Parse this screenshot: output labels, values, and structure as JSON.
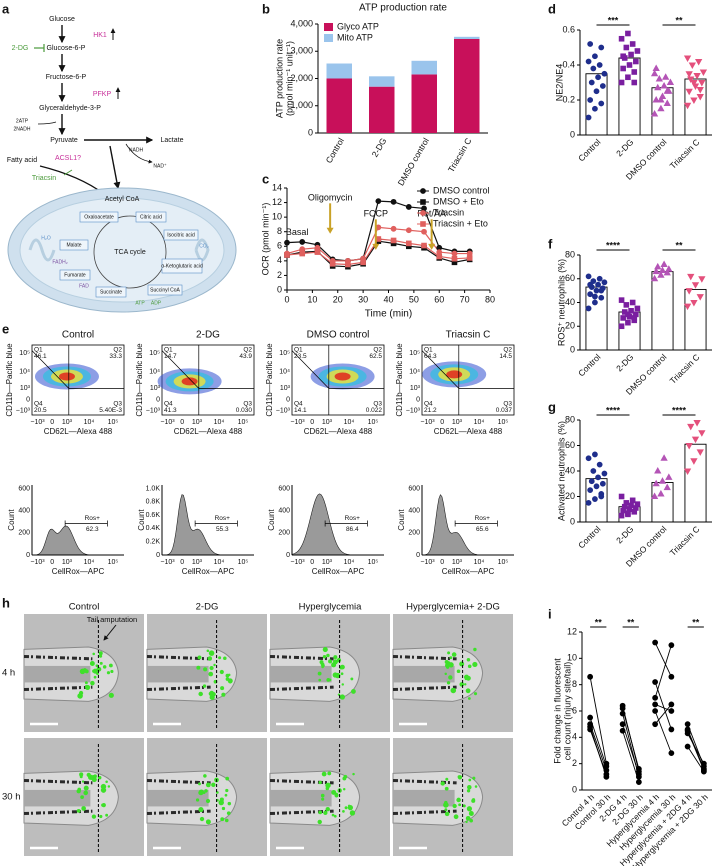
{
  "figure": {
    "panel_labels": [
      "a",
      "b",
      "c",
      "d",
      "e",
      "f",
      "g",
      "h",
      "i"
    ],
    "pathway": {
      "glucose": "Glucose",
      "hk1": "HK1",
      "two_dg": "2-DG",
      "g6p": "Glucose-6-P",
      "f6p": "Fructose-6-P",
      "pfkp": "PFKP",
      "g3p": "Glyceraldehyde-3-P",
      "atp2": "2ATP",
      "nadh2": "2NADH",
      "pyruvate": "Pyruvate",
      "lactate": "Lactate",
      "nadh": "NADH",
      "nad": "NAD⁺",
      "fatty_acid": "Fatty acid",
      "acsl1": "ACSL1?",
      "triacsin": "Triacsin",
      "acetyl_coa": "Acetyl CoA",
      "tca": "TCA cycle",
      "citric": "Citric acid",
      "isocitric": "Isocitric acid",
      "akg": "α-Ketoglutaric acid",
      "succinyl": "Succinyl CoA",
      "succinate": "Succinate",
      "fumarate": "Fumarate",
      "malate": "Malate",
      "oxaloacetate": "Oxaloacetate",
      "co2": "CO₂",
      "fadh2": "FADH₂",
      "fad": "FAD",
      "atp": "ATP",
      "adp": "ADP",
      "h2o": "H₂O"
    },
    "flow": {
      "titles": [
        "Control",
        "2-DG",
        "DMSO control",
        "Triacsin C"
      ],
      "y_label": "CD11b—Pacific blue",
      "x_label": "CD62L—Alexa 488",
      "ticks": [
        "−10³",
        "0",
        "10³",
        "10⁴",
        "10⁵"
      ],
      "quadrant_names": [
        "Q1",
        "Q2",
        "Q3",
        "Q4"
      ],
      "quadrant_values": [
        [
          "46.1",
          "33.3",
          "5.40E-3",
          "20.5"
        ],
        [
          "14.7",
          "43.9",
          "0.030",
          "41.3"
        ],
        [
          "23.5",
          "62.5",
          "0.022",
          "14.1"
        ],
        [
          "64.3",
          "14.5",
          "0.037",
          "21.2"
        ]
      ],
      "hist_x_label": "CellRox—APC",
      "hist_y_label": "Count",
      "gate_label": "Ros+",
      "gate_values": [
        "62.3",
        "55.3",
        "86.4",
        "65.6"
      ],
      "hist_y_ticks": [
        [
          "0",
          "200",
          "400",
          "600"
        ],
        [
          "0",
          "0.2K",
          "0.4K",
          "0.6K",
          "0.8K",
          "1.0K"
        ],
        [
          "0",
          "200",
          "400",
          "600"
        ],
        [
          "0",
          "200",
          "400",
          "600"
        ]
      ]
    },
    "zebrafish": {
      "columns": [
        "Control",
        "2-DG",
        "Hyperglycemia",
        "Hyperglycemia+ 2-DG"
      ],
      "rows": [
        "4 h",
        "30 h"
      ],
      "annotation": "Tail amputation"
    }
  },
  "chart_data": [
    {
      "type": "stacked_bar",
      "title": "ATP production rate",
      "y_label": [
        "ATP production rate",
        "(pmol min⁻¹ unit⁻¹)"
      ],
      "categories": [
        "Control",
        "2-DG",
        "DMSO control",
        "Triacsin C"
      ],
      "series": [
        {
          "name": "Glyco ATP",
          "color": "#c8105a",
          "values": [
            2000,
            1700,
            2150,
            3450
          ]
        },
        {
          "name": "Mito ATP",
          "color": "#9ac4ec",
          "values": [
            550,
            380,
            500,
            80
          ]
        }
      ],
      "ylim": [
        0,
        4000
      ],
      "yticks": [
        0,
        {
          "value": 1000,
          "label": "1,000"
        },
        {
          "value": 2000,
          "label": "2,000"
        },
        {
          "value": 3000,
          "label": "3,000"
        },
        {
          "value": 4000,
          "label": "4,000"
        }
      ],
      "legend": "upper left"
    },
    {
      "type": "line",
      "y_label": "OCR (pmol min⁻¹)",
      "x_label": "Time (min)",
      "x": [
        0,
        6,
        12,
        18,
        24,
        30,
        36,
        42,
        48,
        54,
        60,
        66,
        72
      ],
      "series": [
        {
          "name": "DMSO control",
          "color": "#111111",
          "marker": "circle",
          "values": [
            6.5,
            6.6,
            6.2,
            4.2,
            4.0,
            4.3,
            12.2,
            12.1,
            11.4,
            11.2,
            5.8,
            5.3,
            5.3
          ]
        },
        {
          "name": "DMSO + Eto",
          "color": "#111111",
          "marker": "square",
          "values": [
            4.8,
            5.2,
            5.3,
            3.3,
            3.2,
            3.6,
            6.7,
            6.4,
            6.0,
            5.8,
            4.4,
            3.8,
            4.2
          ]
        },
        {
          "name": "Triacsin",
          "color": "#e0605e",
          "marker": "circle",
          "values": [
            5.0,
            5.6,
            5.8,
            4.0,
            4.0,
            4.3,
            8.6,
            8.4,
            8.2,
            8.0,
            5.2,
            5.0,
            5.0
          ]
        },
        {
          "name": "Triacsin + Eto",
          "color": "#e0605e",
          "marker": "square",
          "values": [
            4.8,
            5.0,
            5.2,
            3.6,
            3.5,
            3.8,
            7.0,
            6.8,
            6.4,
            6.1,
            4.6,
            4.3,
            4.4
          ]
        }
      ],
      "xlim": [
        0,
        80
      ],
      "xticks": [
        0,
        10,
        20,
        30,
        40,
        50,
        60,
        70,
        80
      ],
      "ylim": [
        0,
        14
      ],
      "yticks": [
        0,
        2,
        4,
        6,
        8,
        10,
        12,
        14
      ],
      "injections": [
        {
          "label": "Oligomycin",
          "x": 17
        },
        {
          "label": "FCCP",
          "x": 35
        },
        {
          "label": "Rot/AA",
          "x": 57
        }
      ],
      "injection_color": "#c9a227",
      "basal_label": "Basal",
      "legend": "upper right"
    },
    {
      "type": "dot",
      "y_label": "NE2/NE4",
      "categories": [
        "Control",
        "2-DG",
        "DMSO control",
        "Triacsin C"
      ],
      "values": [
        0.35,
        0.44,
        0.27,
        0.32
      ],
      "points": [
        [
          0.1,
          0.15,
          0.18,
          0.2,
          0.25,
          0.28,
          0.3,
          0.33,
          0.35,
          0.38,
          0.4,
          0.42,
          0.45,
          0.5,
          0.52
        ],
        [
          0.3,
          0.33,
          0.36,
          0.38,
          0.4,
          0.42,
          0.44,
          0.46,
          0.48,
          0.5,
          0.52,
          0.55,
          0.58,
          0.3,
          0.45
        ],
        [
          0.12,
          0.15,
          0.18,
          0.2,
          0.22,
          0.25,
          0.27,
          0.28,
          0.3,
          0.32,
          0.33,
          0.35,
          0.2,
          0.25,
          0.38
        ],
        [
          0.17,
          0.2,
          0.22,
          0.25,
          0.28,
          0.3,
          0.32,
          0.34,
          0.36,
          0.4,
          0.42,
          0.44,
          0.3,
          0.26,
          0.35
        ]
      ],
      "colors": [
        "#1f2e8c",
        "#7a1fa0",
        "#b455b6",
        "#e4507c"
      ],
      "markers": [
        "circle",
        "square",
        "triangle",
        "triangle-down"
      ],
      "ylim": [
        0,
        0.6
      ],
      "yticks": [
        0,
        0.2,
        0.4,
        0.6
      ],
      "comparisons": [
        {
          "groups": [
            "Control",
            "2-DG"
          ],
          "label": "***"
        },
        {
          "groups": [
            "DMSO control",
            "Triacsin C"
          ],
          "label": "**"
        }
      ]
    },
    {
      "type": "dot",
      "y_label": "ROS⁺ neutrophils (%)",
      "categories": [
        "Control",
        "2-DG",
        "DMSO control",
        "Triacsin C"
      ],
      "values": [
        53,
        32,
        66,
        51
      ],
      "points": [
        [
          35,
          40,
          44,
          47,
          50,
          52,
          53,
          55,
          57,
          58,
          60,
          62,
          45,
          50,
          55
        ],
        [
          20,
          23,
          25,
          27,
          28,
          30,
          32,
          33,
          35,
          38,
          40,
          42,
          30,
          27
        ],
        [
          60,
          63,
          65,
          66,
          67,
          68,
          70,
          72
        ],
        [
          37,
          40,
          45,
          50,
          55,
          60,
          62
        ]
      ],
      "colors": [
        "#1f2e8c",
        "#7a1fa0",
        "#b455b6",
        "#e4507c"
      ],
      "markers": [
        "circle",
        "square",
        "triangle",
        "triangle-down"
      ],
      "ylim": [
        0,
        80
      ],
      "yticks": [
        0,
        20,
        40,
        60,
        80
      ],
      "comparisons": [
        {
          "groups": [
            "Control",
            "2-DG"
          ],
          "label": "****"
        },
        {
          "groups": [
            "DMSO control",
            "Triacsin C"
          ],
          "label": "**"
        }
      ]
    },
    {
      "type": "dot",
      "y_label": "Activated neutrophils (%)",
      "categories": [
        "Control",
        "2-DG",
        "DMSO control",
        "Triacsin C"
      ],
      "values": [
        34,
        12,
        31,
        61
      ],
      "points": [
        [
          15,
          18,
          20,
          25,
          28,
          30,
          32,
          35,
          38,
          40,
          45,
          50,
          53,
          22
        ],
        [
          5,
          6,
          8,
          9,
          10,
          11,
          12,
          13,
          14,
          15,
          17,
          20,
          7
        ],
        [
          20,
          22,
          27,
          30,
          32,
          35,
          40,
          50
        ],
        [
          40,
          48,
          55,
          60,
          65,
          70,
          75,
          78
        ]
      ],
      "colors": [
        "#1f2e8c",
        "#7a1fa0",
        "#b455b6",
        "#e4507c"
      ],
      "markers": [
        "circle",
        "square",
        "triangle",
        "triangle-down"
      ],
      "ylim": [
        0,
        80
      ],
      "yticks": [
        0,
        20,
        40,
        60,
        80
      ],
      "comparisons": [
        {
          "groups": [
            "Control",
            "2-DG"
          ],
          "label": "****"
        },
        {
          "groups": [
            "DMSO control",
            "Triacsin C"
          ],
          "label": "****"
        }
      ]
    },
    {
      "type": "paired",
      "y_label": [
        "Fold change in fluorescent",
        "cell count (injury site/tail)"
      ],
      "categories": [
        "Control 4 h",
        "Control 30 h",
        "2-DG 4 h",
        "2-DG 30 h",
        "Hyperglycemia 4 h",
        "Hyperglycemia 30 h",
        "Hyperglycemia + 2DG 4 h",
        "Hyperglycemia + 2DG 30 h"
      ],
      "color": "#000000",
      "series": [
        {
          "values": [
            8.6,
            2.0,
            null,
            null,
            null,
            null,
            null,
            null
          ]
        },
        {
          "values": [
            5.0,
            1.5,
            null,
            null,
            null,
            null,
            null,
            null
          ]
        },
        {
          "values": [
            4.8,
            1.0,
            null,
            null,
            null,
            null,
            null,
            null
          ]
        },
        {
          "values": [
            4.6,
            1.2,
            null,
            null,
            null,
            null,
            null,
            null
          ]
        },
        {
          "values": [
            5.5,
            1.8,
            null,
            null,
            null,
            null,
            null,
            null
          ]
        },
        {
          "values": [
            null,
            null,
            6.2,
            1.6,
            null,
            null,
            null,
            null
          ]
        },
        {
          "values": [
            null,
            null,
            5.8,
            1.0,
            null,
            null,
            null,
            null
          ]
        },
        {
          "values": [
            null,
            null,
            5.0,
            1.2,
            null,
            null,
            null,
            null
          ]
        },
        {
          "values": [
            null,
            null,
            4.5,
            0.6,
            null,
            null,
            null,
            null
          ]
        },
        {
          "values": [
            null,
            null,
            6.4,
            1.4,
            null,
            null,
            null,
            null
          ]
        },
        {
          "values": [
            null,
            null,
            null,
            null,
            11.2,
            8.6,
            null,
            null
          ]
        },
        {
          "values": [
            null,
            null,
            null,
            null,
            7.0,
            11.0,
            null,
            null
          ]
        },
        {
          "values": [
            null,
            null,
            null,
            null,
            8.2,
            4.6,
            null,
            null
          ]
        },
        {
          "values": [
            null,
            null,
            null,
            null,
            6.5,
            6.0,
            null,
            null
          ]
        },
        {
          "values": [
            null,
            null,
            null,
            null,
            6.0,
            2.8,
            null,
            null
          ]
        },
        {
          "values": [
            null,
            null,
            null,
            null,
            5.0,
            6.5,
            null,
            null
          ]
        },
        {
          "values": [
            null,
            null,
            null,
            null,
            null,
            null,
            5.0,
            1.8
          ]
        },
        {
          "values": [
            null,
            null,
            null,
            null,
            null,
            null,
            4.6,
            1.6
          ]
        },
        {
          "values": [
            null,
            null,
            null,
            null,
            null,
            null,
            4.5,
            1.5
          ]
        },
        {
          "values": [
            null,
            null,
            null,
            null,
            null,
            null,
            4.3,
            2.0
          ]
        },
        {
          "values": [
            null,
            null,
            null,
            null,
            null,
            null,
            3.3,
            1.4
          ]
        }
      ],
      "ylim": [
        0,
        12
      ],
      "yticks": [
        0,
        2,
        4,
        6,
        8,
        10,
        12
      ],
      "comparisons": [
        {
          "groups": [
            "Control 4 h",
            "Control 30 h"
          ],
          "label": "**"
        },
        {
          "groups": [
            "2-DG 4 h",
            "2-DG 30 h"
          ],
          "label": "**"
        },
        {
          "groups": [
            "Hyperglycemia + 2DG 4 h",
            "Hyperglycemia + 2DG 30 h"
          ],
          "label": "**"
        }
      ]
    }
  ]
}
